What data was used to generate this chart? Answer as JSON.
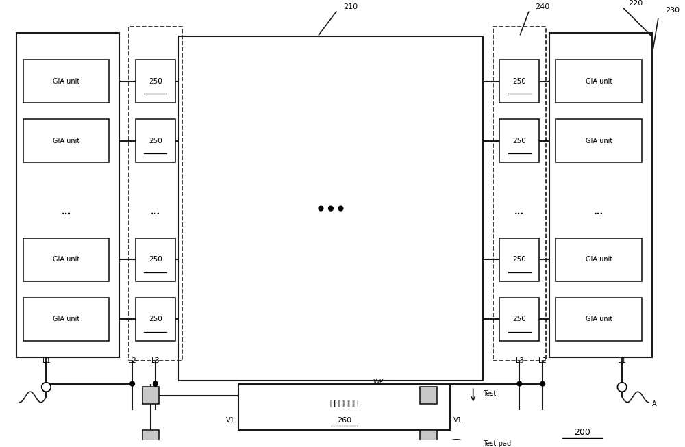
{
  "bg_color": "#ffffff",
  "line_color": "#1a1a1a",
  "box_fill": "#ffffff",
  "shade_fill": "#c8c8c8",
  "dashed_color": "#1a1a1a",
  "fig_width": 10.0,
  "fig_height": 6.53,
  "dpi": 100,
  "label_210": "210",
  "label_220": "220",
  "label_230": "230",
  "label_240": "240",
  "label_250": "250",
  "label_260": "260",
  "label_200": "200",
  "label_gia": "GIA unit",
  "label_signal": "信号生成电路",
  "label_L1": "L1",
  "label_L2": "L2",
  "label_L3": "L3",
  "label_V1": "V1",
  "label_WP": "WP",
  "label_Test": "Test",
  "label_Testpad": "Test-pad",
  "label_A": "A"
}
